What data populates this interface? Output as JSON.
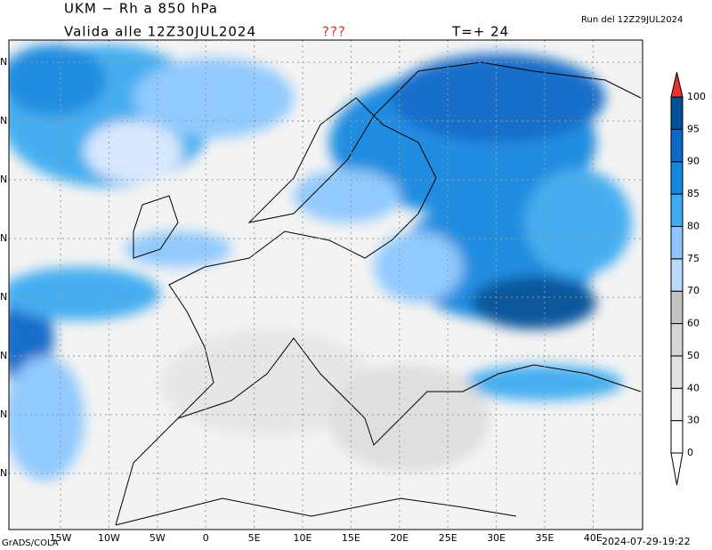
{
  "header": {
    "title": "UKM − Rh a 850 hPa",
    "valid": "Valida alle 12Z30JUL2024",
    "flag": "???",
    "step": "T=+ 24",
    "run": "Run del 12Z29JUL2024"
  },
  "map": {
    "lon_labels": [
      "15W",
      "10W",
      "5W",
      "0",
      "5E",
      "10E",
      "15E",
      "20E",
      "25E",
      "30E",
      "35E",
      "40E"
    ],
    "lat_labels": [
      "N",
      "N",
      "N",
      "N",
      "N",
      "N",
      "N",
      "N"
    ]
  },
  "colorbar": {
    "levels": [
      0,
      30,
      40,
      50,
      60,
      70,
      75,
      80,
      85,
      90,
      95,
      100
    ],
    "colors": [
      "#ffffff",
      "#f0f0f0",
      "#e2e2e2",
      "#d6d6d6",
      "#c4c4c4",
      "#bcd8ff",
      "#8cc8ff",
      "#3cabf0",
      "#1488e0",
      "#0a68c8",
      "#024f98"
    ],
    "over_color": "#e8322d",
    "under_color": "#ffffff"
  },
  "footer": {
    "credit": "GrADS/COLA",
    "timestamp": "2024-07-29-19:22"
  }
}
